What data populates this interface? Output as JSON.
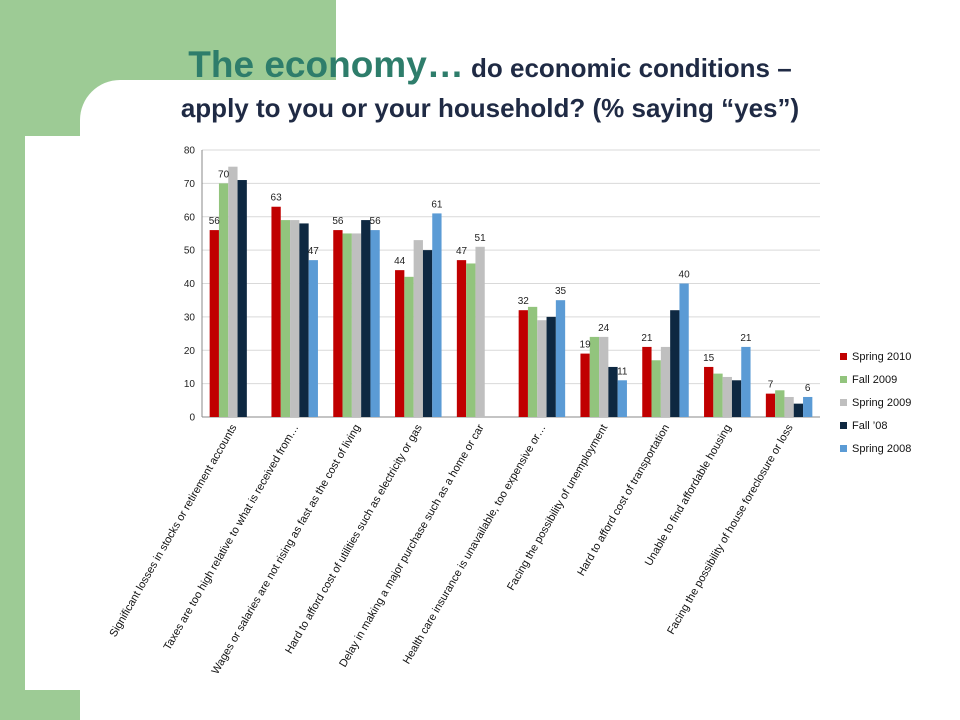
{
  "title": {
    "main": "The economy…",
    "rest": " do economic conditions –",
    "line2": "apply to you or your household?  (% saying “yes”)"
  },
  "chart_data": {
    "type": "bar",
    "title": "The economy… do economic conditions – apply to you or your household?  (% saying “yes”)",
    "categories": [
      "Significant losses in stocks or retirement accounts",
      "Taxes are too high relative to what is received from…",
      "Wages or salaries are not rising as fast as the cost of living",
      "Hard to afford cost of utilities such as electricity or gas",
      "Delay in making a major purchase such as a home or car",
      "Health care insurance is unavailable, too expensive or…",
      "Facing the possibility of unemployment",
      "Hard to afford cost of transportation",
      "Unable to find affordable housing",
      "Facing the possibility of house foreclosure or loss"
    ],
    "series": [
      {
        "name": "Spring 2010",
        "color": "#c00000",
        "values": [
          56,
          63,
          56,
          44,
          47,
          32,
          19,
          21,
          15,
          7
        ]
      },
      {
        "name": "Fall  2009",
        "color": "#92c47d",
        "values": [
          70,
          59,
          55,
          42,
          46,
          33,
          24,
          17,
          13,
          8
        ]
      },
      {
        "name": "Spring 2009",
        "color": "#bfbfbf",
        "values": [
          75,
          59,
          55,
          53,
          51,
          29,
          24,
          21,
          12,
          6
        ]
      },
      {
        "name": "Fall ’08",
        "color": "#0e2841",
        "values": [
          71,
          58,
          59,
          50,
          null,
          30,
          15,
          32,
          11,
          4
        ]
      },
      {
        "name": "Spring 2008",
        "color": "#5b9bd5",
        "values": [
          null,
          47,
          56,
          61,
          null,
          35,
          11,
          40,
          21,
          6
        ]
      }
    ],
    "data_labels": [
      {
        "category": 0,
        "series": 0,
        "text": "56"
      },
      {
        "category": 0,
        "series": 1,
        "text": "70"
      },
      {
        "category": 1,
        "series": 0,
        "text": "63"
      },
      {
        "category": 1,
        "series": 4,
        "text": "47"
      },
      {
        "category": 2,
        "series": 0,
        "text": "56"
      },
      {
        "category": 2,
        "series": 4,
        "text": "56"
      },
      {
        "category": 3,
        "series": 0,
        "text": "44"
      },
      {
        "category": 3,
        "series": 4,
        "text": "61"
      },
      {
        "category": 4,
        "series": 0,
        "text": "47"
      },
      {
        "category": 4,
        "series": 2,
        "text": "51"
      },
      {
        "category": 5,
        "series": 0,
        "text": "32"
      },
      {
        "category": 5,
        "series": 4,
        "text": "35"
      },
      {
        "category": 6,
        "series": 0,
        "text": "19"
      },
      {
        "category": 6,
        "series": 2,
        "text": "24"
      },
      {
        "category": 6,
        "series": 4,
        "text": "11"
      },
      {
        "category": 7,
        "series": 0,
        "text": "21"
      },
      {
        "category": 7,
        "series": 4,
        "text": "40"
      },
      {
        "category": 8,
        "series": 0,
        "text": "15"
      },
      {
        "category": 8,
        "series": 4,
        "text": "21"
      },
      {
        "category": 9,
        "series": 0,
        "text": "7"
      },
      {
        "category": 9,
        "series": 4,
        "text": "6"
      }
    ],
    "yticks": [
      "0",
      "10",
      "20",
      "30",
      "40",
      "50",
      "60",
      "70",
      "80"
    ],
    "ylim": [
      0,
      80
    ],
    "grid": true,
    "legend_position": "right"
  }
}
